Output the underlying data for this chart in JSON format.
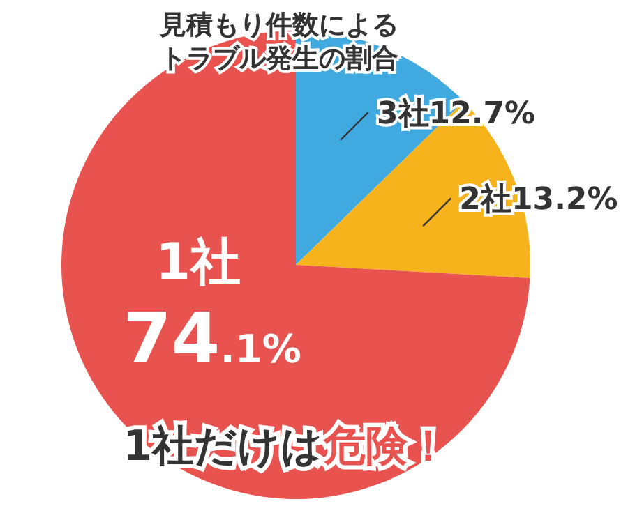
{
  "chart_data": {
    "type": "pie",
    "title": "見積もり件数によるトラブル発生の割合",
    "categories": [
      "3社",
      "2社",
      "1社"
    ],
    "values": [
      12.7,
      13.2,
      74.1
    ],
    "value_labels": [
      "12.7%",
      "13.2%",
      "74.1%"
    ],
    "colors": [
      "#3fa9e0",
      "#f6b31b",
      "#e8534f"
    ],
    "annotations": [
      "1社だけは危険！"
    ]
  }
}
